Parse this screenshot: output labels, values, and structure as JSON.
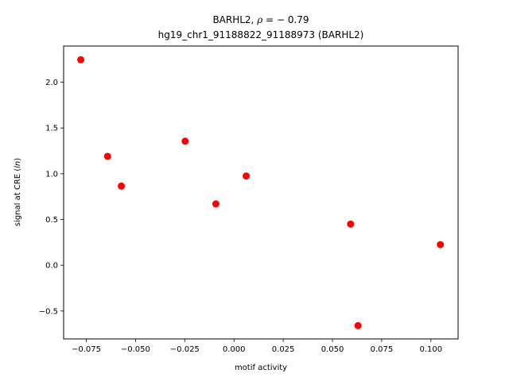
{
  "chart_data": {
    "type": "scatter",
    "title_line1_prefix": "BARHL2, ",
    "title_line1_rho": "ρ",
    "title_line1_suffix": " = − 0.79",
    "title_line2": "hg19_chr1_91188822_91188973 (BARHL2)",
    "xlabel": "motif activity",
    "ylabel_prefix": "signal at CRE (",
    "ylabel_italic": "ln",
    "ylabel_suffix": ")",
    "xlim": [
      -0.0865,
      0.1138
    ],
    "ylim": [
      -0.805,
      2.395
    ],
    "xticks": [
      -0.075,
      -0.05,
      -0.025,
      0.0,
      0.025,
      0.05,
      0.075,
      0.1
    ],
    "xtick_labels": [
      "−0.075",
      "−0.050",
      "−0.025",
      "0.000",
      "0.025",
      "0.050",
      "0.075",
      "0.100"
    ],
    "yticks": [
      -0.5,
      0.0,
      0.5,
      1.0,
      1.5,
      2.0
    ],
    "ytick_labels": [
      "−0.5",
      "0.0",
      "0.5",
      "1.0",
      "1.5",
      "2.0"
    ],
    "grid": false,
    "marker_color": "#ff0000",
    "points": [
      {
        "x": -0.0778,
        "y": 2.245
      },
      {
        "x": -0.0642,
        "y": 1.19
      },
      {
        "x": -0.0572,
        "y": 0.865
      },
      {
        "x": -0.0248,
        "y": 1.355
      },
      {
        "x": -0.0092,
        "y": 0.67
      },
      {
        "x": 0.0062,
        "y": 0.975
      },
      {
        "x": 0.0592,
        "y": 0.45
      },
      {
        "x": 0.063,
        "y": -0.66
      },
      {
        "x": 0.1048,
        "y": 0.225
      }
    ]
  }
}
